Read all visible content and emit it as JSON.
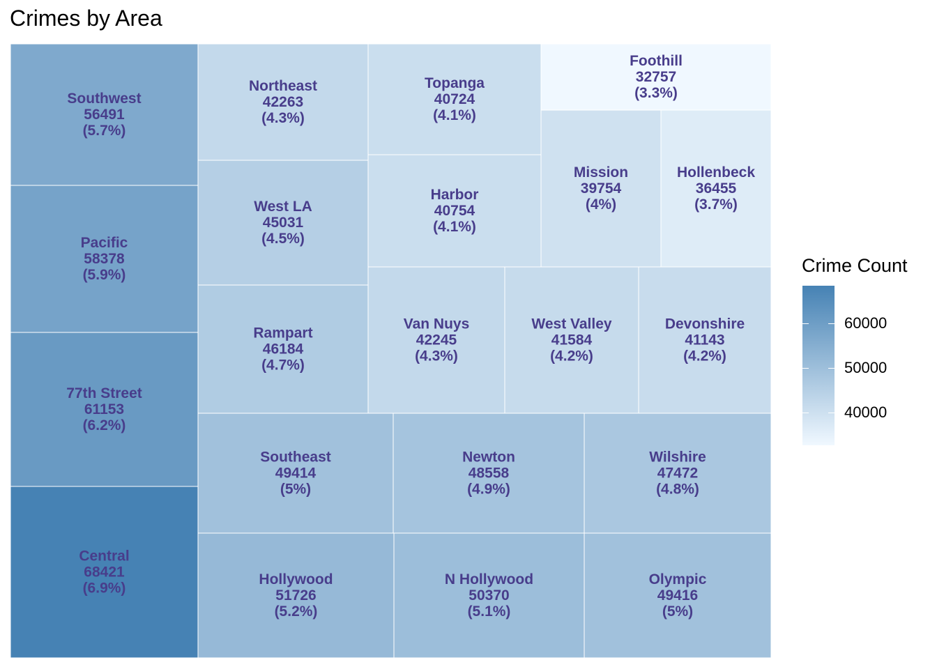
{
  "chart_data": {
    "type": "treemap",
    "title": "Crimes by Area",
    "legend": {
      "title": "Crime Count",
      "position": "right",
      "color_low": "#F0F8FF",
      "color_high": "#4682B4",
      "range": [
        32757,
        68421
      ],
      "ticks": [
        {
          "value": 60000,
          "label": "60000"
        },
        {
          "value": 50000,
          "label": "50000"
        },
        {
          "value": 40000,
          "label": "40000"
        }
      ]
    },
    "items": [
      {
        "name": "Central",
        "value": 68421,
        "pct": "(6.9%)"
      },
      {
        "name": "77th Street",
        "value": 61153,
        "pct": "(6.2%)"
      },
      {
        "name": "Pacific",
        "value": 58378,
        "pct": "(5.9%)"
      },
      {
        "name": "Southwest",
        "value": 56491,
        "pct": "(5.7%)"
      },
      {
        "name": "Hollywood",
        "value": 51726,
        "pct": "(5.2%)"
      },
      {
        "name": "N Hollywood",
        "value": 50370,
        "pct": "(5.1%)"
      },
      {
        "name": "Olympic",
        "value": 49416,
        "pct": "(5%)"
      },
      {
        "name": "Southeast",
        "value": 49414,
        "pct": "(5%)"
      },
      {
        "name": "Newton",
        "value": 48558,
        "pct": "(4.9%)"
      },
      {
        "name": "Wilshire",
        "value": 47472,
        "pct": "(4.8%)"
      },
      {
        "name": "Rampart",
        "value": 46184,
        "pct": "(4.7%)"
      },
      {
        "name": "West LA",
        "value": 45031,
        "pct": "(4.5%)"
      },
      {
        "name": "Northeast",
        "value": 42263,
        "pct": "(4.3%)"
      },
      {
        "name": "Van Nuys",
        "value": 42245,
        "pct": "(4.3%)"
      },
      {
        "name": "West Valley",
        "value": 41584,
        "pct": "(4.2%)"
      },
      {
        "name": "Devonshire",
        "value": 41143,
        "pct": "(4.2%)"
      },
      {
        "name": "Harbor",
        "value": 40754,
        "pct": "(4.1%)"
      },
      {
        "name": "Topanga",
        "value": 40724,
        "pct": "(4.1%)"
      },
      {
        "name": "Mission",
        "value": 39754,
        "pct": "(4%)"
      },
      {
        "name": "Hollenbeck",
        "value": 36455,
        "pct": "(3.7%)"
      },
      {
        "name": "Foothill",
        "value": 32757,
        "pct": "(3.3%)"
      }
    ]
  }
}
